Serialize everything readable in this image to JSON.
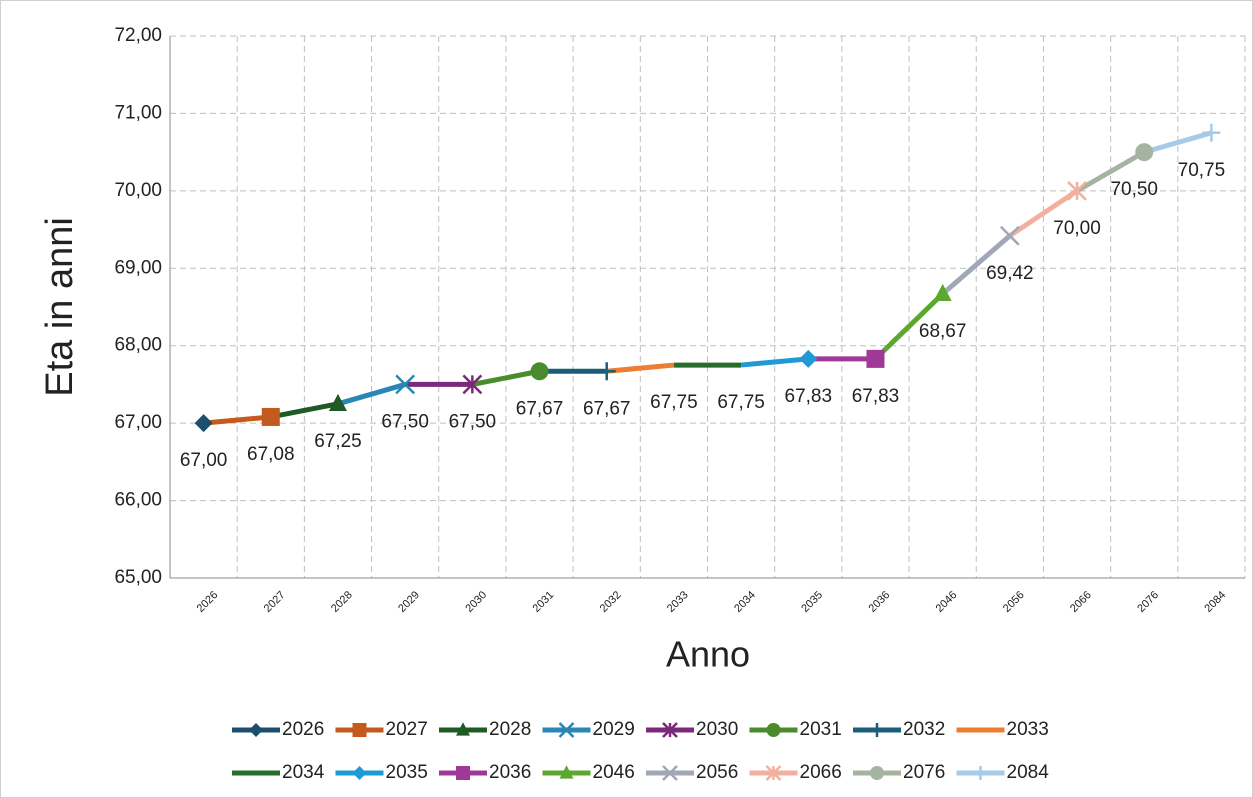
{
  "chart_data": {
    "type": "line",
    "x_label": "Anno",
    "y_label": "Eta in anni",
    "categories": [
      "2026",
      "2027",
      "2028",
      "2029",
      "2030",
      "2031",
      "2032",
      "2033",
      "2034",
      "2035",
      "2036",
      "2046",
      "2056",
      "2066",
      "2076",
      "2084"
    ],
    "ylim": [
      65,
      72
    ],
    "yticks": [
      {
        "value": 65,
        "label": "65,00"
      },
      {
        "value": 66,
        "label": "66,00"
      },
      {
        "value": 67,
        "label": "67,00"
      },
      {
        "value": 68,
        "label": "68,00"
      },
      {
        "value": 69,
        "label": "69,00"
      },
      {
        "value": 70,
        "label": "70,00"
      },
      {
        "value": 71,
        "label": "71,00"
      },
      {
        "value": 72,
        "label": "72,00"
      }
    ],
    "grid": true,
    "legend": "bottom",
    "series": [
      {
        "name": "2026",
        "color": "#1d4e6e",
        "marker": "diamond",
        "values": [
          67.0,
          null,
          null,
          null,
          null,
          null,
          null,
          null,
          null,
          null,
          null,
          null,
          null,
          null,
          null,
          null
        ],
        "value_labels": [
          "67,00",
          null,
          null,
          null,
          null,
          null,
          null,
          null,
          null,
          null,
          null,
          null,
          null,
          null,
          null,
          null
        ]
      },
      {
        "name": "2027",
        "color": "#c55a1e",
        "marker": "square",
        "values": [
          67.0,
          67.08,
          null,
          null,
          null,
          null,
          null,
          null,
          null,
          null,
          null,
          null,
          null,
          null,
          null,
          null
        ],
        "value_labels": [
          null,
          "67,08",
          null,
          null,
          null,
          null,
          null,
          null,
          null,
          null,
          null,
          null,
          null,
          null,
          null,
          null
        ]
      },
      {
        "name": "2028",
        "color": "#1f5a24",
        "marker": "triangle",
        "values": [
          null,
          67.08,
          67.25,
          null,
          null,
          null,
          null,
          null,
          null,
          null,
          null,
          null,
          null,
          null,
          null,
          null
        ],
        "value_labels": [
          null,
          null,
          "67,25",
          null,
          null,
          null,
          null,
          null,
          null,
          null,
          null,
          null,
          null,
          null,
          null,
          null
        ]
      },
      {
        "name": "2029",
        "color": "#2a86b5",
        "marker": "x",
        "values": [
          null,
          null,
          67.25,
          67.5,
          null,
          null,
          null,
          null,
          null,
          null,
          null,
          null,
          null,
          null,
          null,
          null
        ],
        "value_labels": [
          null,
          null,
          null,
          "67,50",
          null,
          null,
          null,
          null,
          null,
          null,
          null,
          null,
          null,
          null,
          null,
          null
        ]
      },
      {
        "name": "2030",
        "color": "#7a2a78",
        "marker": "asterisk",
        "values": [
          null,
          null,
          null,
          67.5,
          67.5,
          null,
          null,
          null,
          null,
          null,
          null,
          null,
          null,
          null,
          null,
          null
        ],
        "value_labels": [
          null,
          null,
          null,
          null,
          "67,50",
          null,
          null,
          null,
          null,
          null,
          null,
          null,
          null,
          null,
          null,
          null
        ]
      },
      {
        "name": "2031",
        "color": "#4a8c2c",
        "marker": "circle",
        "values": [
          null,
          null,
          null,
          null,
          67.5,
          67.67,
          null,
          null,
          null,
          null,
          null,
          null,
          null,
          null,
          null,
          null
        ],
        "value_labels": [
          null,
          null,
          null,
          null,
          null,
          "67,67",
          null,
          null,
          null,
          null,
          null,
          null,
          null,
          null,
          null,
          null
        ]
      },
      {
        "name": "2032",
        "color": "#1c5e79",
        "marker": "plus",
        "values": [
          null,
          null,
          null,
          null,
          null,
          67.67,
          67.67,
          null,
          null,
          null,
          null,
          null,
          null,
          null,
          null,
          null
        ],
        "value_labels": [
          null,
          null,
          null,
          null,
          null,
          null,
          "67,67",
          null,
          null,
          null,
          null,
          null,
          null,
          null,
          null,
          null
        ]
      },
      {
        "name": "2033",
        "color": "#ed7d31",
        "marker": "none",
        "values": [
          null,
          null,
          null,
          null,
          null,
          null,
          67.67,
          67.75,
          null,
          null,
          null,
          null,
          null,
          null,
          null,
          null
        ],
        "value_labels": [
          null,
          null,
          null,
          null,
          null,
          null,
          null,
          "67,75",
          null,
          null,
          null,
          null,
          null,
          null,
          null,
          null
        ]
      },
      {
        "name": "2034",
        "color": "#266c2a",
        "marker": "none",
        "values": [
          null,
          null,
          null,
          null,
          null,
          null,
          null,
          67.75,
          67.75,
          null,
          null,
          null,
          null,
          null,
          null,
          null
        ],
        "value_labels": [
          null,
          null,
          null,
          null,
          null,
          null,
          null,
          null,
          "67,75",
          null,
          null,
          null,
          null,
          null,
          null,
          null
        ]
      },
      {
        "name": "2035",
        "color": "#1f9ad6",
        "marker": "diamond",
        "values": [
          null,
          null,
          null,
          null,
          null,
          null,
          null,
          null,
          67.75,
          67.83,
          null,
          null,
          null,
          null,
          null,
          null
        ],
        "value_labels": [
          null,
          null,
          null,
          null,
          null,
          null,
          null,
          null,
          null,
          "67,83",
          null,
          null,
          null,
          null,
          null,
          null
        ]
      },
      {
        "name": "2036",
        "color": "#a03898",
        "marker": "square",
        "values": [
          null,
          null,
          null,
          null,
          null,
          null,
          null,
          null,
          null,
          67.83,
          67.83,
          null,
          null,
          null,
          null,
          null
        ],
        "value_labels": [
          null,
          null,
          null,
          null,
          null,
          null,
          null,
          null,
          null,
          null,
          "67,83",
          null,
          null,
          null,
          null,
          null
        ]
      },
      {
        "name": "2046",
        "color": "#5ca82e",
        "marker": "triangle",
        "values": [
          null,
          null,
          null,
          null,
          null,
          null,
          null,
          null,
          null,
          null,
          67.83,
          68.67,
          null,
          null,
          null,
          null
        ],
        "value_labels": [
          null,
          null,
          null,
          null,
          null,
          null,
          null,
          null,
          null,
          null,
          null,
          "68,67",
          null,
          null,
          null,
          null
        ]
      },
      {
        "name": "2056",
        "color": "#a0a8b8",
        "marker": "x",
        "values": [
          null,
          null,
          null,
          null,
          null,
          null,
          null,
          null,
          null,
          null,
          null,
          68.67,
          69.42,
          null,
          null,
          null
        ],
        "value_labels": [
          null,
          null,
          null,
          null,
          null,
          null,
          null,
          null,
          null,
          null,
          null,
          null,
          "69,42",
          null,
          null,
          null
        ]
      },
      {
        "name": "2066",
        "color": "#f2b0a0",
        "marker": "asterisk",
        "values": [
          null,
          null,
          null,
          null,
          null,
          null,
          null,
          null,
          null,
          null,
          null,
          null,
          69.42,
          70.0,
          null,
          null
        ],
        "value_labels": [
          null,
          null,
          null,
          null,
          null,
          null,
          null,
          null,
          null,
          null,
          null,
          null,
          null,
          "70,00",
          null,
          null
        ]
      },
      {
        "name": "2076",
        "color": "#a4b4a0",
        "marker": "circle",
        "values": [
          null,
          null,
          null,
          null,
          null,
          null,
          null,
          null,
          null,
          null,
          null,
          null,
          null,
          70.0,
          70.5,
          null
        ],
        "value_labels": [
          null,
          null,
          null,
          null,
          null,
          null,
          null,
          null,
          null,
          null,
          null,
          null,
          null,
          null,
          "70,50",
          null
        ]
      },
      {
        "name": "2084",
        "color": "#a6cbe8",
        "marker": "plus",
        "values": [
          null,
          null,
          null,
          null,
          null,
          null,
          null,
          null,
          null,
          null,
          null,
          null,
          null,
          null,
          70.5,
          70.75
        ],
        "value_labels": [
          null,
          null,
          null,
          null,
          null,
          null,
          null,
          null,
          null,
          null,
          null,
          null,
          null,
          null,
          null,
          "70,75"
        ]
      }
    ]
  }
}
